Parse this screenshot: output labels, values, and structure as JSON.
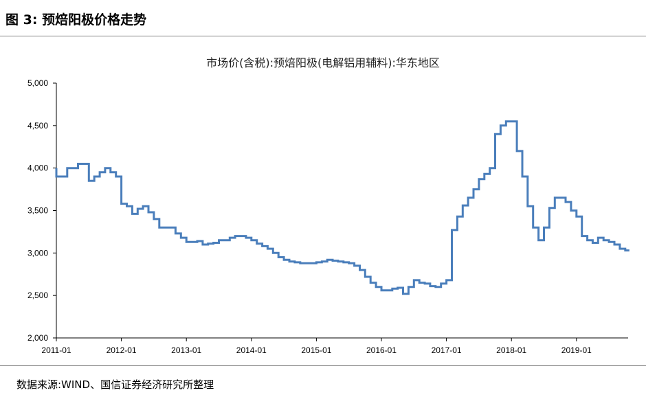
{
  "figure": {
    "label": "图 3:",
    "title": "预焙阳极价格走势"
  },
  "source": "数据来源:WIND、国信证券经济研究所整理",
  "chart_data": {
    "type": "line",
    "title": "市场价(含税):预焙阳极(电解铝用辅料):华东地区",
    "xlabel": "",
    "ylabel": "",
    "ylim": [
      2000,
      5000
    ],
    "xlim": [
      "2011-01",
      "2019-10"
    ],
    "yticks": [
      2000,
      2500,
      3000,
      3500,
      4000,
      4500,
      5000
    ],
    "ytick_labels": [
      "2,000",
      "2,500",
      "3,000",
      "3,500",
      "4,000",
      "4,500",
      "5,000"
    ],
    "xticks": [
      "2011-01",
      "2012-01",
      "2013-01",
      "2014-01",
      "2015-01",
      "2016-01",
      "2017-01",
      "2018-01",
      "2019-01"
    ],
    "grid": false,
    "legend": "none",
    "series_color": "#4a7ebb",
    "series": [
      {
        "x": [
          "2011-01",
          "2011-01",
          "2011-03",
          "2011-04",
          "2011-05",
          "2011-06",
          "2011-07",
          "2011-08",
          "2011-09",
          "2011-10",
          "2011-10",
          "2011-11",
          "2011-12",
          "2012-01",
          "2012-02",
          "2012-03",
          "2012-04",
          "2012-05",
          "2012-06",
          "2012-07",
          "2012-08",
          "2012-09",
          "2012-10",
          "2012-11",
          "2012-12",
          "2013-01",
          "2013-03",
          "2013-04",
          "2013-05",
          "2013-06",
          "2013-07",
          "2013-09",
          "2013-10",
          "2013-11",
          "2013-12",
          "2014-01",
          "2014-02",
          "2014-03",
          "2014-04",
          "2014-05",
          "2014-06",
          "2014-07",
          "2014-08",
          "2014-09",
          "2014-10",
          "2015-01",
          "2015-02",
          "2015-03",
          "2015-04",
          "2015-05",
          "2015-06",
          "2015-07",
          "2015-08",
          "2015-09",
          "2015-10",
          "2015-11",
          "2015-12",
          "2016-01",
          "2016-02",
          "2016-03",
          "2016-04",
          "2016-05",
          "2016-06",
          "2016-07",
          "2016-08",
          "2016-09",
          "2016-10",
          "2016-11",
          "2016-12",
          "2017-01",
          "2017-02",
          "2017-03",
          "2017-04",
          "2017-05",
          "2017-06",
          "2017-07",
          "2017-08",
          "2017-09",
          "2017-10",
          "2017-11",
          "2017-12",
          "2018-01",
          "2018-02",
          "2018-03",
          "2018-04",
          "2018-05",
          "2018-06",
          "2018-07",
          "2018-08",
          "2018-09",
          "2018-10",
          "2018-11",
          "2018-12",
          "2019-01",
          "2019-02",
          "2019-03",
          "2019-04",
          "2019-05",
          "2019-06",
          "2019-07",
          "2019-08",
          "2019-09",
          "2019-10"
        ],
        "y": [
          4000,
          3900,
          4000,
          4000,
          4050,
          4050,
          3850,
          3900,
          3950,
          4000,
          4000,
          3950,
          3900,
          3580,
          3550,
          3460,
          3520,
          3550,
          3480,
          3400,
          3300,
          3300,
          3300,
          3230,
          3180,
          3130,
          3140,
          3100,
          3110,
          3120,
          3150,
          3180,
          3200,
          3200,
          3180,
          3150,
          3110,
          3080,
          3050,
          3000,
          2950,
          2920,
          2900,
          2890,
          2880,
          2890,
          2900,
          2920,
          2910,
          2900,
          2890,
          2880,
          2850,
          2800,
          2720,
          2650,
          2600,
          2560,
          2560,
          2580,
          2590,
          2520,
          2600,
          2680,
          2650,
          2640,
          2610,
          2600,
          2640,
          2680,
          3270,
          3430,
          3560,
          3650,
          3750,
          3870,
          3930,
          4000,
          4400,
          4500,
          4550,
          4550,
          4200,
          3900,
          3550,
          3300,
          3150,
          3300,
          3530,
          3650,
          3650,
          3600,
          3500,
          3430,
          3200,
          3150,
          3120,
          3180,
          3150,
          3130,
          3100,
          3050,
          3030
        ]
      }
    ]
  }
}
